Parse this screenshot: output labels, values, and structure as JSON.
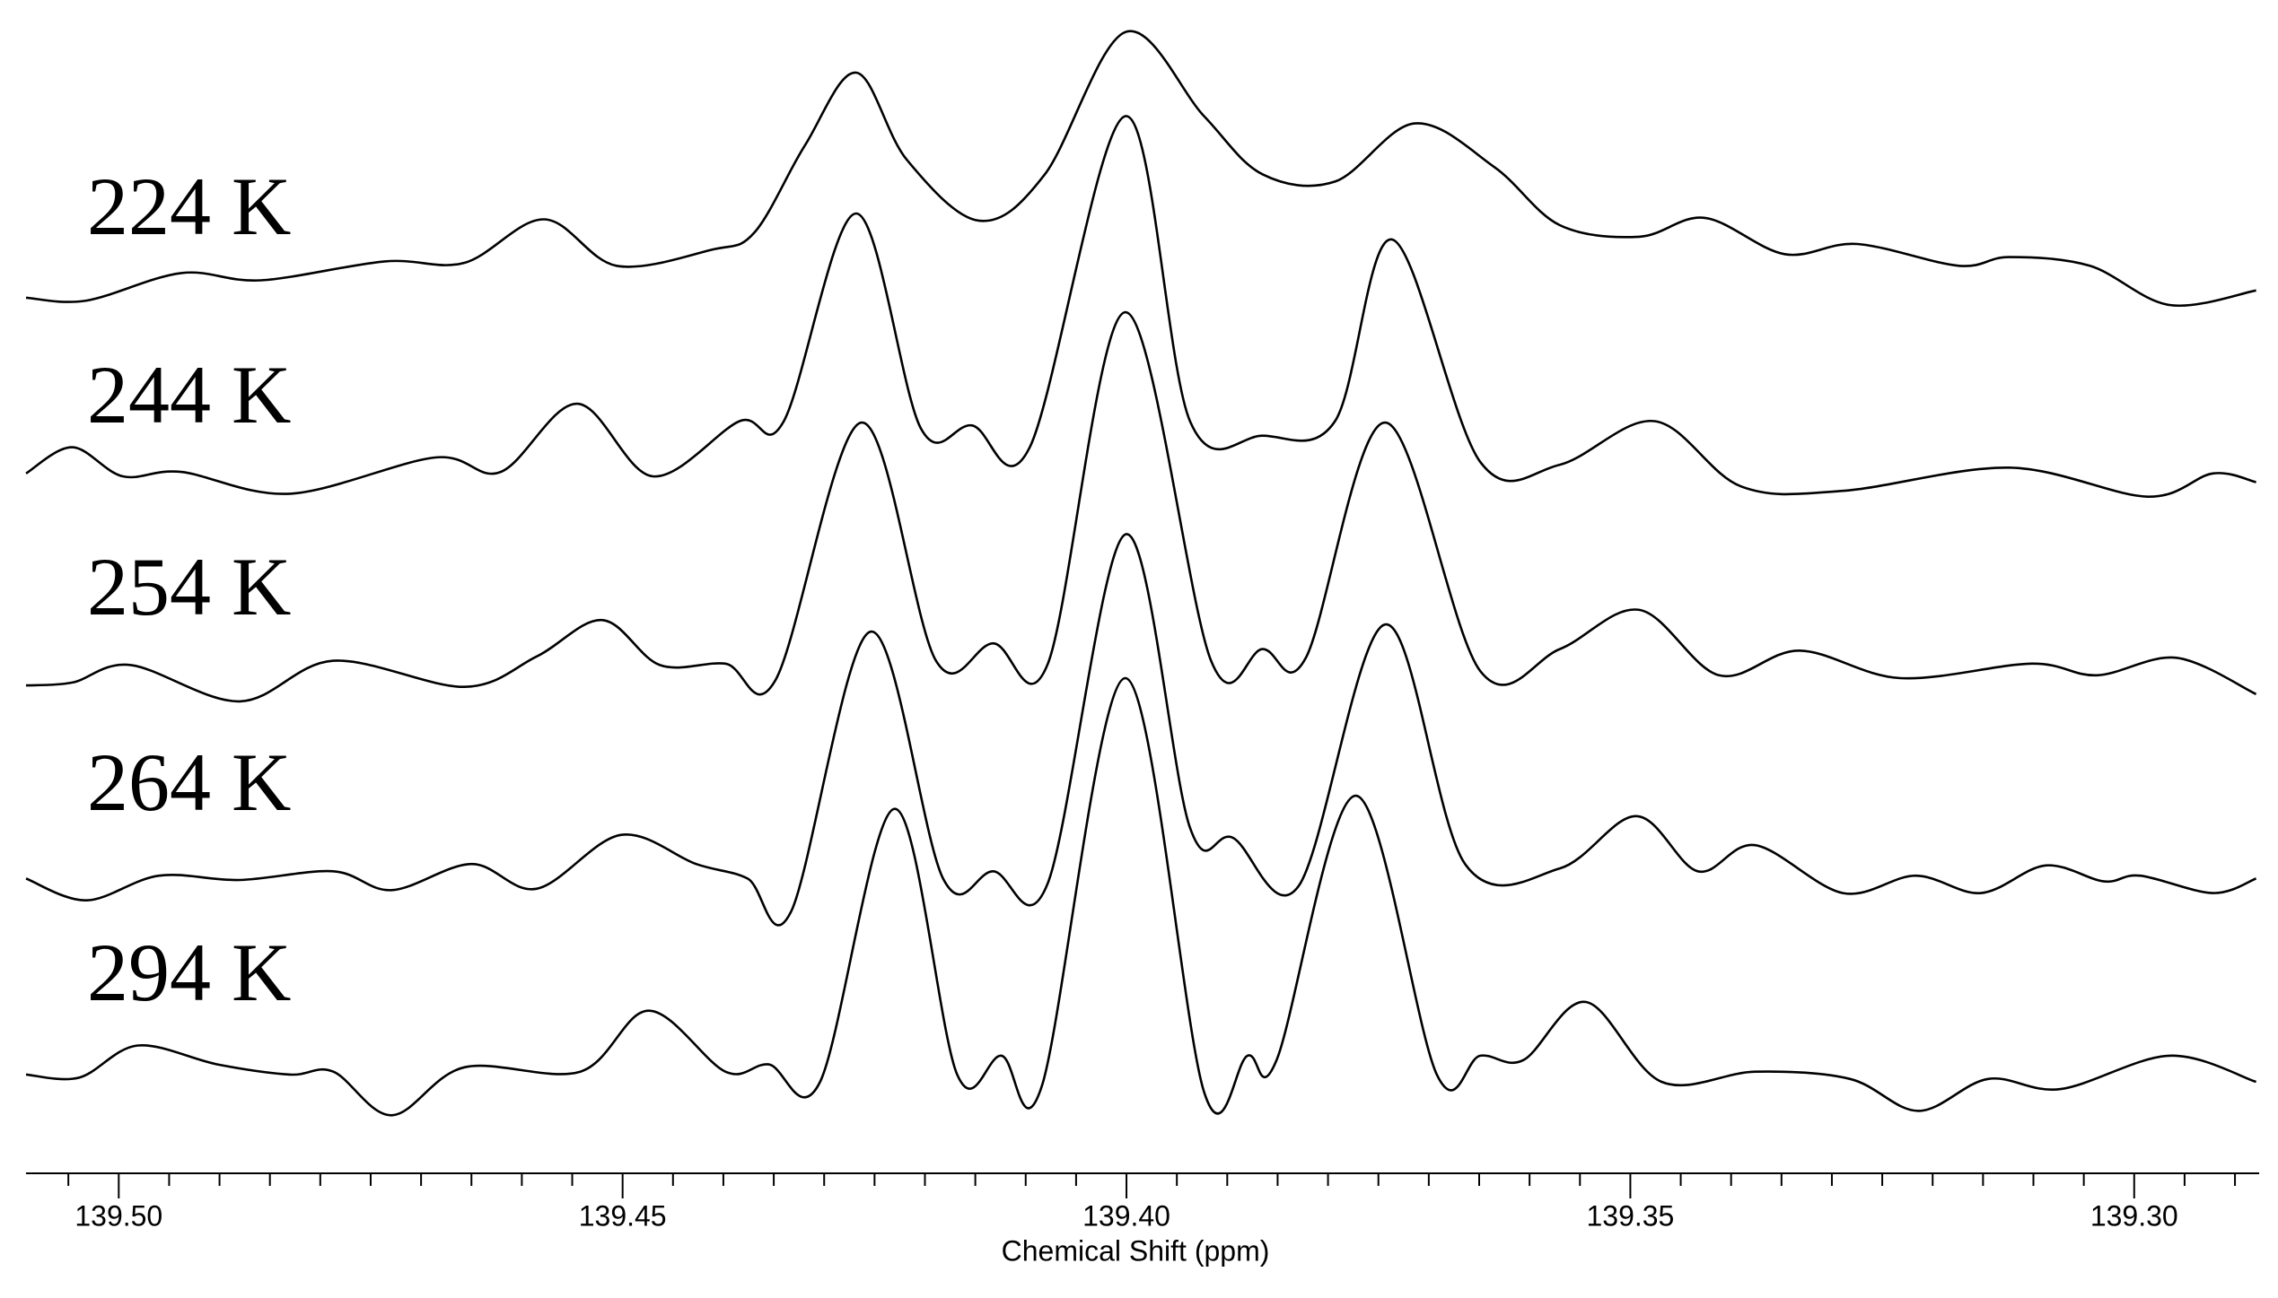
{
  "chart_data": {
    "type": "line",
    "x_label": "Chemical Shift (ppm)",
    "xlim": [
      139.5092,
      139.2876
    ],
    "ylim": [
      0,
      800
    ],
    "xticks": [
      {
        "value": 139.5,
        "label": "139.50"
      },
      {
        "value": 139.45,
        "label": "139.45"
      },
      {
        "value": 139.4,
        "label": "139.40"
      },
      {
        "value": 139.35,
        "label": "139.35"
      },
      {
        "value": 139.3,
        "label": "139.30"
      }
    ],
    "xminorticks": [
      139.505,
      139.495,
      139.49,
      139.485,
      139.48,
      139.475,
      139.47,
      139.465,
      139.46,
      139.455,
      139.445,
      139.44,
      139.435,
      139.43,
      139.425,
      139.42,
      139.415,
      139.41,
      139.405,
      139.395,
      139.39,
      139.385,
      139.38,
      139.375,
      139.37,
      139.365,
      139.36,
      139.355,
      139.345,
      139.34,
      139.335,
      139.33,
      139.325,
      139.32,
      139.315,
      139.31,
      139.305,
      139.295,
      139.29
    ],
    "series": [
      {
        "name": "224 K",
        "color": "#000000",
        "x": [
          139.5092,
          139.5032,
          139.4938,
          139.4859,
          139.4736,
          139.4657,
          139.4578,
          139.4506,
          139.4412,
          139.4369,
          139.4319,
          139.4268,
          139.4218,
          139.4146,
          139.4081,
          139.4001,
          139.3923,
          139.3865,
          139.3793,
          139.3714,
          139.3635,
          139.357,
          139.3491,
          139.3426,
          139.3347,
          139.3275,
          139.3174,
          139.3124,
          139.3044,
          139.2965,
          139.2879
        ],
        "values": [
          603,
          601,
          620,
          615,
          628,
          627,
          657,
          625,
          636,
          648,
          708,
          758,
          698,
          656,
          688,
          786,
          728,
          688,
          683,
          723,
          693,
          653,
          645,
          658,
          633,
          640,
          625,
          631,
          625,
          598,
          608
        ]
      },
      {
        "name": "244 K",
        "color": "#000000",
        "x": [
          139.5092,
          139.5046,
          139.4996,
          139.4938,
          139.483,
          139.4686,
          139.4621,
          139.4545,
          139.447,
          139.4384,
          139.434,
          139.4268,
          139.4204,
          139.4153,
          139.4096,
          139.4001,
          139.3937,
          139.3865,
          139.3793,
          139.3736,
          139.3649,
          139.357,
          139.3476,
          139.339,
          139.3289,
          139.3124,
          139.2987,
          139.2922,
          139.2879
        ],
        "values": [
          482,
          500,
          480,
          483,
          468,
          493,
          483,
          530,
          480,
          518,
          518,
          661,
          513,
          515,
          500,
          728,
          518,
          508,
          518,
          643,
          490,
          488,
          518,
          473,
          470,
          486,
          466,
          482,
          476
        ]
      },
      {
        "name": "254 K",
        "color": "#000000",
        "x": [
          139.5092,
          139.5046,
          139.4988,
          139.488,
          139.4787,
          139.4657,
          139.4585,
          139.452,
          139.4463,
          139.4398,
          139.4348,
          139.4263,
          139.4189,
          139.4132,
          139.4078,
          139.4001,
          139.3916,
          139.3865,
          139.3822,
          139.3743,
          139.3649,
          139.357,
          139.3491,
          139.3412,
          139.3332,
          139.3232,
          139.3102,
          139.3037,
          139.2958,
          139.2879
        ],
        "values": [
          336,
          338,
          350,
          325,
          353,
          335,
          356,
          381,
          350,
          351,
          340,
          517,
          353,
          365,
          351,
          593,
          353,
          361,
          355,
          517,
          346,
          361,
          388,
          343,
          360,
          341,
          351,
          343,
          355,
          330
        ]
      },
      {
        "name": "264 K",
        "color": "#000000",
        "x": [
          139.5092,
          139.5032,
          139.496,
          139.488,
          139.4787,
          139.4729,
          139.465,
          139.4585,
          139.4502,
          139.4427,
          139.4376,
          139.4333,
          139.4254,
          139.4182,
          139.4132,
          139.4078,
          139.4001,
          139.3937,
          139.3894,
          139.3829,
          139.3743,
          139.3664,
          139.357,
          139.3494,
          139.3433,
          139.3376,
          139.3289,
          139.3217,
          139.3152,
          139.3088,
          139.303,
          139.2994,
          139.2922,
          139.2879
        ],
        "values": [
          203,
          188,
          205,
          202,
          208,
          195,
          213,
          196,
          233,
          213,
          203,
          180,
          373,
          203,
          208,
          200,
          440,
          238,
          231,
          198,
          378,
          213,
          210,
          246,
          208,
          226,
          193,
          205,
          193,
          212,
          201,
          205,
          193,
          203
        ]
      },
      {
        "name": "294 K",
        "color": "#000000",
        "x": [
          139.5092,
          139.5039,
          139.4981,
          139.4902,
          139.483,
          139.4787,
          139.4729,
          139.4657,
          139.4542,
          139.4474,
          139.4398,
          139.4355,
          139.4304,
          139.423,
          139.4168,
          139.4124,
          139.4084,
          139.4001,
          139.3923,
          139.388,
          139.3851,
          139.3772,
          139.3692,
          139.3649,
          139.3606,
          139.3544,
          139.3469,
          139.3376,
          139.3282,
          139.3214,
          139.3145,
          139.3073,
          139.2965,
          139.2879
        ],
        "values": [
          68,
          66,
          88,
          75,
          68,
          70,
          40,
          73,
          70,
          112,
          70,
          75,
          63,
          251,
          68,
          81,
          60,
          341,
          56,
          81,
          78,
          260,
          68,
          81,
          78,
          118,
          63,
          70,
          65,
          43,
          65,
          58,
          81,
          63
        ]
      }
    ]
  }
}
